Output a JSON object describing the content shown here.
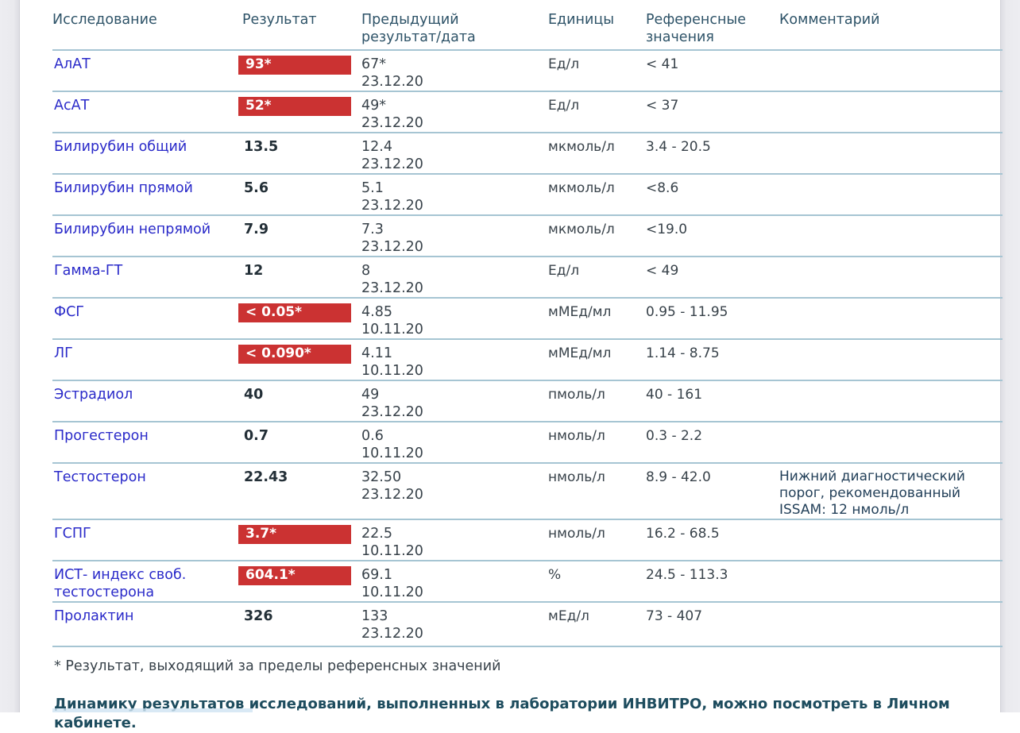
{
  "page": {
    "footnote": "* Результат, выходящий за пределы референсных значений",
    "dynamics_note": "Динамику результатов исследований, выполненных в лаборатории ИНВИТРО, можно посмотреть в Личном кабинете."
  },
  "colors": {
    "flag_red": "#cb3232",
    "flag_text": "#ffffff",
    "test_name_blue": "#2a2ac9",
    "separator_blue": "#a6c5d3",
    "header_text": "#2e5368",
    "footer_text": "#1d4c5e"
  },
  "table": {
    "headers": [
      "Исследование",
      "Результат",
      "Предыдущий результат/дата",
      "Единицы",
      "Референсные значения",
      "Комментарий"
    ],
    "rows": [
      {
        "name": "АлАТ",
        "result": "93*",
        "flagged": true,
        "prev_value": "67*",
        "prev_date": "23.12.20",
        "units": "Ед/л",
        "reference": "< 41",
        "comment": ""
      },
      {
        "name": "АсАТ",
        "result": "52*",
        "flagged": true,
        "prev_value": "49*",
        "prev_date": "23.12.20",
        "units": "Ед/л",
        "reference": "< 37",
        "comment": ""
      },
      {
        "name": "Билирубин общий",
        "result": "13.5",
        "flagged": false,
        "prev_value": "12.4",
        "prev_date": "23.12.20",
        "units": "мкмоль/л",
        "reference": "3.4 - 20.5",
        "comment": ""
      },
      {
        "name": "Билирубин прямой",
        "result": "5.6",
        "flagged": false,
        "prev_value": "5.1",
        "prev_date": "23.12.20",
        "units": "мкмоль/л",
        "reference": "<8.6",
        "comment": ""
      },
      {
        "name": "Билирубин непрямой",
        "result": "7.9",
        "flagged": false,
        "prev_value": "7.3",
        "prev_date": "23.12.20",
        "units": "мкмоль/л",
        "reference": "<19.0",
        "comment": ""
      },
      {
        "name": "Гамма-ГТ",
        "result": "12",
        "flagged": false,
        "prev_value": "8",
        "prev_date": "23.12.20",
        "units": "Ед/л",
        "reference": "< 49",
        "comment": ""
      },
      {
        "name": "ФСГ",
        "result": "< 0.05*",
        "flagged": true,
        "prev_value": "4.85",
        "prev_date": "10.11.20",
        "units": "мМЕд/мл",
        "reference": "0.95 - 11.95",
        "comment": ""
      },
      {
        "name": "ЛГ",
        "result": "< 0.090*",
        "flagged": true,
        "prev_value": "4.11",
        "prev_date": "10.11.20",
        "units": "мМЕд/мл",
        "reference": "1.14 - 8.75",
        "comment": ""
      },
      {
        "name": "Эстрадиол",
        "result": "40",
        "flagged": false,
        "prev_value": "49",
        "prev_date": "23.12.20",
        "units": "пмоль/л",
        "reference": "40 - 161",
        "comment": ""
      },
      {
        "name": "Прогестерон",
        "result": "0.7",
        "flagged": false,
        "prev_value": "0.6",
        "prev_date": "10.11.20",
        "units": "нмоль/л",
        "reference": "0.3 - 2.2",
        "comment": ""
      },
      {
        "name": "Тестостерон",
        "result": "22.43",
        "flagged": false,
        "prev_value": "32.50",
        "prev_date": "23.12.20",
        "units": "нмоль/л",
        "reference": "8.9 - 42.0",
        "comment": "Нижний диагностический порог, рекомендованный ISSAM: 12 нмоль/л"
      },
      {
        "name": "ГСПГ",
        "result": "3.7*",
        "flagged": true,
        "prev_value": "22.5",
        "prev_date": "10.11.20",
        "units": "нмоль/л",
        "reference": "16.2 - 68.5",
        "comment": ""
      },
      {
        "name": "ИСТ- индекс своб. тестостерона",
        "result": "604.1*",
        "flagged": true,
        "prev_value": "69.1",
        "prev_date": "10.11.20",
        "units": "%",
        "reference": "24.5 - 113.3",
        "comment": ""
      },
      {
        "name": "Пролактин",
        "result": "326",
        "flagged": false,
        "prev_value": "133",
        "prev_date": "23.12.20",
        "units": "мЕд/л",
        "reference": "73 - 407",
        "comment": ""
      }
    ]
  }
}
